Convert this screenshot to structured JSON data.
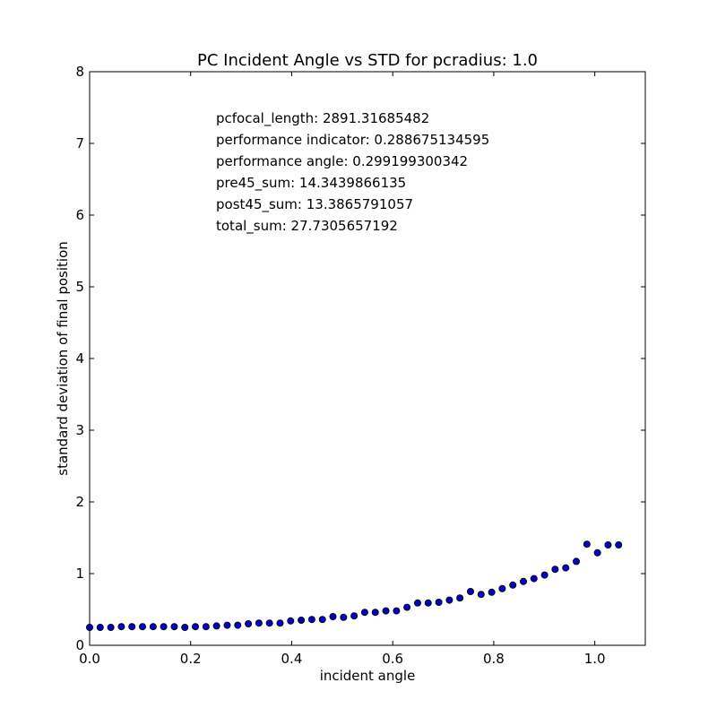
{
  "chart_data": {
    "type": "scatter",
    "title": "PC Incident Angle vs STD for pcradius: 1.0",
    "xlabel": "incident angle",
    "ylabel": "standard deviation of final position",
    "xlim": [
      0.0,
      1.1
    ],
    "ylim": [
      0,
      8
    ],
    "xticks": [
      0.0,
      0.2,
      0.4,
      0.6,
      0.8,
      1.0
    ],
    "xtick_labels": [
      "0.0",
      "0.2",
      "0.4",
      "0.6",
      "0.8",
      "1.0"
    ],
    "yticks": [
      0,
      1,
      2,
      3,
      4,
      5,
      6,
      7,
      8
    ],
    "ytick_labels": [
      "0",
      "1",
      "2",
      "3",
      "4",
      "5",
      "6",
      "7",
      "8"
    ],
    "grid": false,
    "marker_color": "#0000bf",
    "marker_edge_color": "#000000",
    "annotations": [
      "pcfocal_length: 2891.31685482",
      "performance indicator: 0.288675134595",
      "performance angle: 0.299199300342",
      "pre45_sum: 14.3439866135",
      "post45_sum: 13.3865791057",
      "total_sum: 27.7305657192"
    ],
    "x": [
      0.0,
      0.0209,
      0.0419,
      0.0628,
      0.0838,
      0.1047,
      0.1257,
      0.1466,
      0.1676,
      0.1885,
      0.2094,
      0.2304,
      0.2513,
      0.2723,
      0.2932,
      0.3142,
      0.3351,
      0.356,
      0.377,
      0.3979,
      0.4189,
      0.4398,
      0.4608,
      0.4817,
      0.5027,
      0.5236,
      0.5445,
      0.5655,
      0.5864,
      0.6074,
      0.6283,
      0.6493,
      0.6702,
      0.6912,
      0.7121,
      0.733,
      0.754,
      0.7749,
      0.7959,
      0.8168,
      0.8378,
      0.8587,
      0.8796,
      0.9006,
      0.9215,
      0.9425,
      0.9634,
      0.9844,
      1.0053,
      1.0263,
      1.0472
    ],
    "y": [
      0.25,
      0.25,
      0.25,
      0.26,
      0.26,
      0.26,
      0.26,
      0.26,
      0.26,
      0.25,
      0.26,
      0.26,
      0.27,
      0.28,
      0.28,
      0.3,
      0.31,
      0.31,
      0.31,
      0.34,
      0.35,
      0.36,
      0.36,
      0.4,
      0.39,
      0.41,
      0.46,
      0.46,
      0.48,
      0.48,
      0.53,
      0.59,
      0.59,
      0.6,
      0.63,
      0.66,
      0.75,
      0.71,
      0.74,
      0.79,
      0.84,
      0.89,
      0.93,
      0.98,
      1.06,
      1.08,
      1.17,
      1.41,
      1.29,
      1.4,
      1.4
    ]
  }
}
